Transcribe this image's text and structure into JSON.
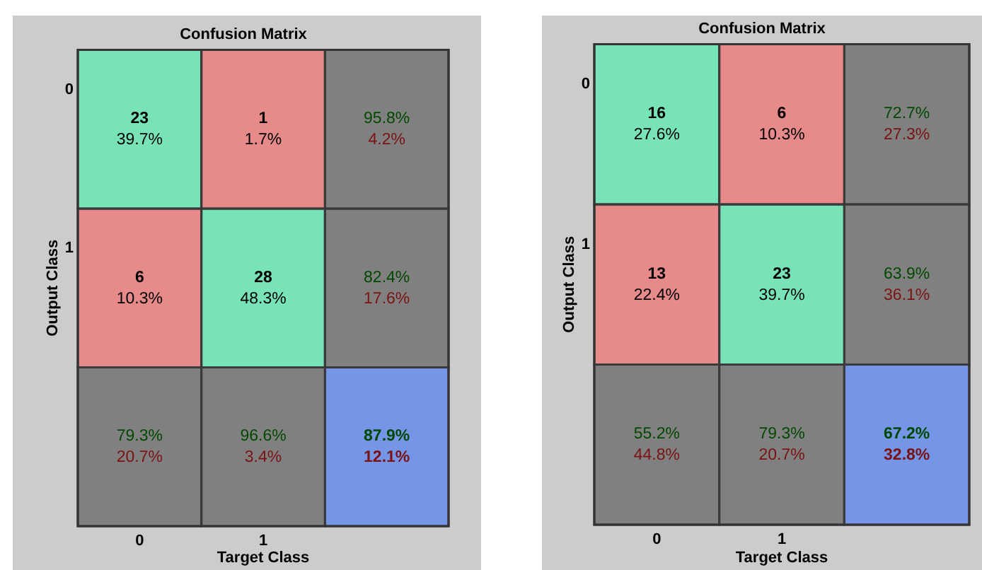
{
  "chart_data": [
    {
      "type": "heatmap",
      "title": "Confusion Matrix",
      "xlabel": "Target Class",
      "ylabel": "Output Class",
      "categories": [
        "0",
        "1",
        null
      ],
      "y_categories": [
        "0",
        null,
        "1",
        null,
        null,
        null
      ],
      "cells": [
        [
          23,
          1,
          95.8
        ],
        [
          39.7,
          1.7,
          4.2
        ],
        [
          6,
          28,
          82.4
        ],
        [
          10.3,
          48.3,
          17.6
        ],
        [
          79.3,
          96.6,
          87.9
        ],
        [
          20.7,
          3.4,
          12.1
        ]
      ],
      "cell_labels": [
        [
          "23",
          "1",
          "95.8%"
        ],
        [
          "39.7%",
          "1.7%",
          "4.2%"
        ],
        [
          "6",
          "28",
          "82.4%"
        ],
        [
          "10.3%",
          "48.3%",
          "17.6%"
        ],
        [
          "79.3%",
          "96.6%",
          "87.9%"
        ],
        [
          "20.7%",
          "3.4%",
          "12.1%"
        ]
      ],
      "data_labels": true,
      "colors": [
        [
          "#78e3b7",
          "#e68a8a",
          "#808080"
        ],
        [
          "#78e3b7",
          "#e68a8a",
          "#808080"
        ],
        [
          "#e68a8a",
          "#78e3b7",
          "#808080"
        ],
        [
          "#e68a8a",
          "#78e3b7",
          "#808080"
        ],
        [
          "#808080",
          "#808080",
          "#7595e6"
        ],
        [
          "#808080",
          "#808080",
          "#7595e6"
        ]
      ]
    },
    {
      "type": "heatmap",
      "title": "Confusion Matrix",
      "xlabel": "Target Class",
      "ylabel": "Output Class",
      "categories": [
        "0",
        "1",
        null
      ],
      "y_categories": [
        "0",
        null,
        "1",
        null,
        null,
        null
      ],
      "cells": [
        [
          16,
          6,
          72.7
        ],
        [
          27.6,
          10.3,
          27.3
        ],
        [
          13,
          23,
          63.9
        ],
        [
          22.4,
          39.7,
          36.1
        ],
        [
          55.2,
          79.3,
          67.2
        ],
        [
          44.8,
          20.7,
          32.8
        ]
      ],
      "cell_labels": [
        [
          "16",
          "6",
          "72.7%"
        ],
        [
          "27.6%",
          "10.3%",
          "27.3%"
        ],
        [
          "13",
          "23",
          "63.9%"
        ],
        [
          "22.4%",
          "39.7%",
          "36.1%"
        ],
        [
          "55.2%",
          "79.3%",
          "67.2%"
        ],
        [
          "44.8%",
          "20.7%",
          "32.8%"
        ]
      ],
      "data_labels": true,
      "colors": [
        [
          "#78e3b7",
          "#e68a8a",
          "#808080"
        ],
        [
          "#78e3b7",
          "#e68a8a",
          "#808080"
        ],
        [
          "#e68a8a",
          "#78e3b7",
          "#808080"
        ],
        [
          "#e68a8a",
          "#78e3b7",
          "#808080"
        ],
        [
          "#808080",
          "#808080",
          "#7595e6"
        ],
        [
          "#808080",
          "#808080",
          "#7595e6"
        ]
      ]
    }
  ]
}
